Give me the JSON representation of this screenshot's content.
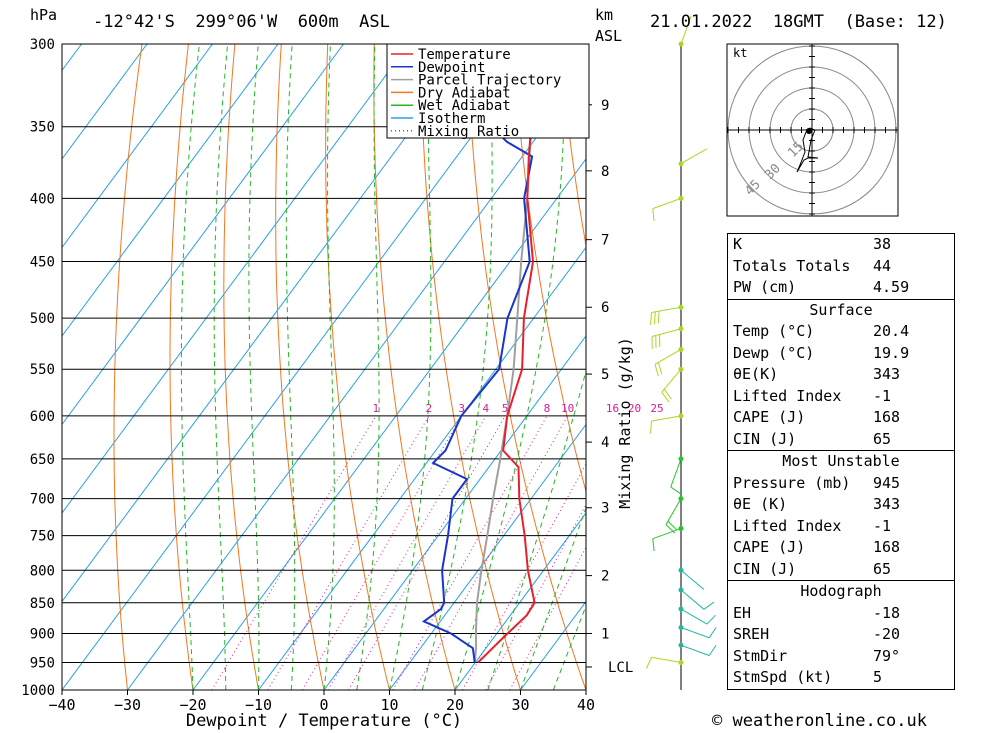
{
  "header": {
    "pressure_unit": "hPa",
    "location": "-12°42'S  299°06'W  600m  ASL",
    "km_label": "km",
    "asl_label": "ASL",
    "datetime": "21.01.2022  18GMT  (Base: 12)"
  },
  "footer": {
    "copyright": "© weatheronline.co.uk"
  },
  "stats": {
    "top": [
      {
        "label": "K",
        "value": "38"
      },
      {
        "label": "Totals Totals",
        "value": "44"
      },
      {
        "label": "PW (cm)",
        "value": "4.59"
      }
    ],
    "surface": {
      "title": "Surface",
      "rows": [
        {
          "label": "Temp (°C)",
          "value": "20.4"
        },
        {
          "label": "Dewp (°C)",
          "value": "19.9"
        },
        {
          "label": "θE(K)",
          "value": "343"
        },
        {
          "label": "Lifted Index",
          "value": "-1"
        },
        {
          "label": "CAPE (J)",
          "value": "168"
        },
        {
          "label": "CIN (J)",
          "value": "65"
        }
      ]
    },
    "most_unstable": {
      "title": "Most Unstable",
      "rows": [
        {
          "label": "Pressure (mb)",
          "value": "945"
        },
        {
          "label": "θE (K)",
          "value": "343"
        },
        {
          "label": "Lifted Index",
          "value": "-1"
        },
        {
          "label": "CAPE (J)",
          "value": "168"
        },
        {
          "label": "CIN (J)",
          "value": "65"
        }
      ]
    },
    "hodograph": {
      "title": "Hodograph",
      "rows": [
        {
          "label": "EH",
          "value": "-18"
        },
        {
          "label": "SREH",
          "value": "-20"
        },
        {
          "label": "StmDir",
          "value": "79°"
        },
        {
          "label": "StmSpd (kt)",
          "value": "5"
        }
      ]
    }
  },
  "colors": {
    "temperature": "#e8202a",
    "dewpoint": "#1a35c8",
    "parcel": "#a0a0a0",
    "dry_adiabat": "#f07820",
    "wet_adiabat": "#22b822",
    "isotherm": "#2aa0e8",
    "mixing_ratio": "#d0209a",
    "wind": "#a8d820"
  },
  "chart_data": {
    "type": "skew-t",
    "xlabel": "Dewpoint / Temperature (°C)",
    "ylabel_right": "Mixing Ratio (g/kg)",
    "x_ticks": [
      -40,
      -30,
      -20,
      -10,
      0,
      10,
      20,
      30,
      40
    ],
    "pressure_ticks": [
      300,
      350,
      400,
      450,
      500,
      550,
      600,
      650,
      700,
      750,
      800,
      850,
      900,
      950,
      1000
    ],
    "xlim": [
      -40,
      40
    ],
    "ylim_hpa": [
      1000,
      300
    ],
    "height_ticks_km": [
      {
        "label": "9",
        "p": 336
      },
      {
        "label": "8",
        "p": 380
      },
      {
        "label": "7",
        "p": 432
      },
      {
        "label": "6",
        "p": 490
      },
      {
        "label": "5",
        "p": 555
      },
      {
        "label": "4",
        "p": 630
      },
      {
        "label": "3",
        "p": 712
      },
      {
        "label": "2",
        "p": 808
      },
      {
        "label": "1",
        "p": 900
      },
      {
        "label": "LCL",
        "p": 958
      }
    ],
    "mixing_ratio_labels": [
      "1",
      "2",
      "3",
      "4",
      "5",
      "8",
      "10",
      "16",
      "20",
      "25"
    ],
    "legend": [
      "Temperature",
      "Dewpoint",
      "Parcel Trajectory",
      "Dry Adiabat",
      "Wet Adiabat",
      "Isotherm",
      "Mixing Ratio"
    ],
    "series": [
      {
        "name": "Temperature",
        "points": [
          [
            950,
            20.4
          ],
          [
            925,
            21
          ],
          [
            905,
            21.5
          ],
          [
            870,
            22.5
          ],
          [
            850,
            22.3
          ],
          [
            800,
            17.6
          ],
          [
            750,
            13.2
          ],
          [
            700,
            8.2
          ],
          [
            660,
            4.5
          ],
          [
            640,
            0.3
          ],
          [
            600,
            -3
          ],
          [
            550,
            -6
          ],
          [
            500,
            -11.5
          ],
          [
            450,
            -16.5
          ],
          [
            400,
            -24.5
          ],
          [
            370,
            -29
          ],
          [
            350,
            -32
          ],
          [
            300,
            -41.5
          ]
        ]
      },
      {
        "name": "Dewpoint",
        "points": [
          [
            950,
            19.9
          ],
          [
            925,
            18
          ],
          [
            900,
            13
          ],
          [
            880,
            7.5
          ],
          [
            860,
            8.7
          ],
          [
            850,
            8.5
          ],
          [
            800,
            4.5
          ],
          [
            750,
            1.5
          ],
          [
            700,
            -2
          ],
          [
            675,
            -2
          ],
          [
            655,
            -9
          ],
          [
            640,
            -8.5
          ],
          [
            600,
            -10
          ],
          [
            550,
            -9.5
          ],
          [
            500,
            -14
          ],
          [
            450,
            -17
          ],
          [
            400,
            -25
          ],
          [
            370,
            -28.5
          ],
          [
            360,
            -34
          ],
          [
            350,
            -38
          ],
          [
            300,
            -46
          ]
        ]
      },
      {
        "name": "Parcel Trajectory",
        "points": [
          [
            950,
            19.9
          ],
          [
            925,
            18.5
          ],
          [
            900,
            16.8
          ],
          [
            850,
            13.5
          ],
          [
            800,
            10.5
          ],
          [
            750,
            7.5
          ],
          [
            700,
            4.2
          ],
          [
            650,
            0.8
          ],
          [
            600,
            -3
          ],
          [
            550,
            -7.3
          ],
          [
            500,
            -12.5
          ],
          [
            450,
            -18.3
          ],
          [
            400,
            -24.5
          ],
          [
            350,
            -32
          ],
          [
            300,
            -41
          ]
        ]
      }
    ],
    "hodograph": {
      "unit": "kt",
      "ring_labels": [
        "15",
        "30",
        "45"
      ]
    },
    "wind_barbs": [
      {
        "p": 300,
        "dir": 20,
        "spd": 5
      },
      {
        "p": 375,
        "dir": 60,
        "spd": 5
      },
      {
        "p": 400,
        "dir": 250,
        "spd": 15
      },
      {
        "p": 490,
        "dir": 260,
        "spd": 30
      },
      {
        "p": 510,
        "dir": 255,
        "spd": 30
      },
      {
        "p": 530,
        "dir": 240,
        "spd": 25
      },
      {
        "p": 550,
        "dir": 220,
        "spd": 20
      },
      {
        "p": 600,
        "dir": 260,
        "spd": 15
      },
      {
        "p": 650,
        "dir": 200,
        "spd": 15
      },
      {
        "p": 700,
        "dir": 210,
        "spd": 20
      },
      {
        "p": 740,
        "dir": 250,
        "spd": 10
      },
      {
        "p": 800,
        "dir": 130,
        "spd": 5
      },
      {
        "p": 830,
        "dir": 130,
        "spd": 15
      },
      {
        "p": 860,
        "dir": 120,
        "spd": 15
      },
      {
        "p": 890,
        "dir": 110,
        "spd": 15
      },
      {
        "p": 920,
        "dir": 110,
        "spd": 10
      },
      {
        "p": 950,
        "dir": 280,
        "spd": 15
      }
    ]
  }
}
